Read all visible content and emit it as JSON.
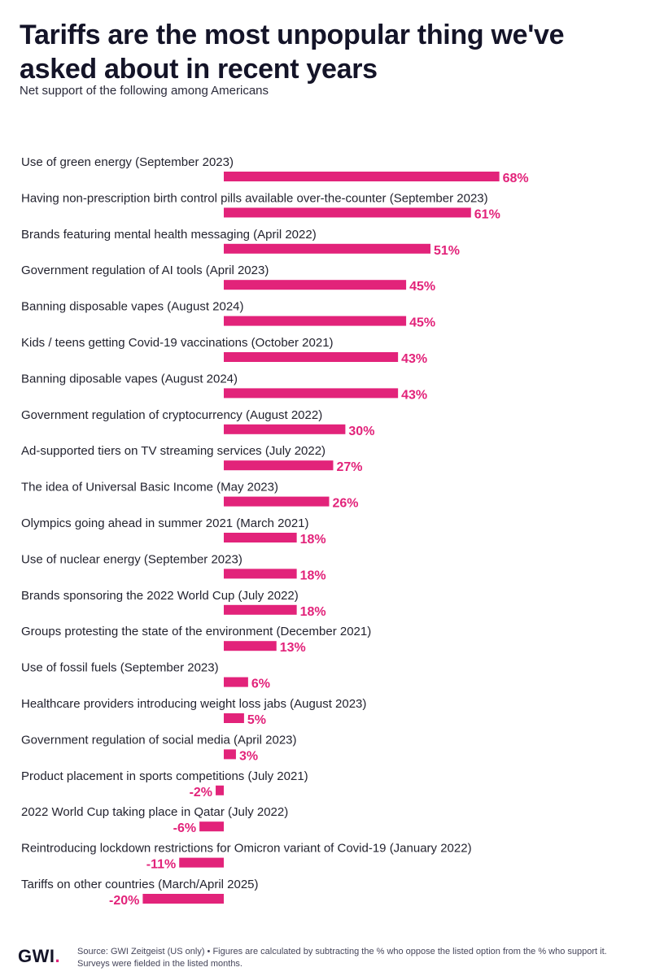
{
  "header": {
    "title": "Tariffs are the most unpopular thing we've asked about in recent years",
    "subtitle": "Net support of the following among Americans"
  },
  "footer": {
    "logo_text": "GWI",
    "logo_dot": ".",
    "note": "Source: GWI Zeitgeist (US only) • Figures are calculated by subtracting the % who oppose the listed option from the % who support it. Surveys were fielded in the listed months."
  },
  "colors": {
    "bar": "#e2237a",
    "text": "#23232f"
  },
  "chart_data": {
    "type": "bar",
    "orientation": "horizontal",
    "categories": [
      "Use of green energy (September 2023)",
      "Having non-prescription birth control pills available over-the-counter (September 2023)",
      "Brands featuring mental health messaging (April 2022)",
      "Government regulation of AI tools (April 2023)",
      "Banning disposable vapes (August 2024)",
      "Kids / teens getting Covid-19 vaccinations (October 2021)",
      "Banning diposable vapes (August 2024)",
      "Government regulation of cryptocurrency (August 2022)",
      "Ad-supported tiers on TV streaming services (July 2022)",
      "The idea of Universal Basic Income (May 2023)",
      "Olympics going ahead in summer 2021 (March 2021)",
      "Use of nuclear energy (September 2023)",
      "Brands sponsoring the 2022 World Cup (July 2022)",
      "Groups protesting the state of the environment (December 2021)",
      "Use of fossil fuels (September 2023)",
      "Healthcare providers introducing weight loss jabs (August 2023)",
      "Government regulation of social media (April 2023)",
      "Product placement in sports competitions (July 2021)",
      "2022 World Cup taking place in Qatar (July 2022)",
      "Reintroducing lockdown restrictions for Omicron variant of Covid-19 (January 2022)",
      "Tariffs on other countries (March/April 2025)"
    ],
    "values": [
      68,
      61,
      51,
      45,
      45,
      43,
      43,
      30,
      27,
      26,
      18,
      18,
      18,
      13,
      6,
      5,
      3,
      -2,
      -6,
      -11,
      -20
    ],
    "value_labels": [
      "68%",
      "61%",
      "51%",
      "45%",
      "45%",
      "43%",
      "43%",
      "30%",
      "27%",
      "26%",
      "18%",
      "18%",
      "18%",
      "13%",
      "6%",
      "5%",
      "3%",
      "-2%",
      "-6%",
      "-11%",
      "-20%"
    ],
    "unit": "%",
    "xlim": [
      -20,
      68
    ],
    "grid": false,
    "legend": "none"
  }
}
